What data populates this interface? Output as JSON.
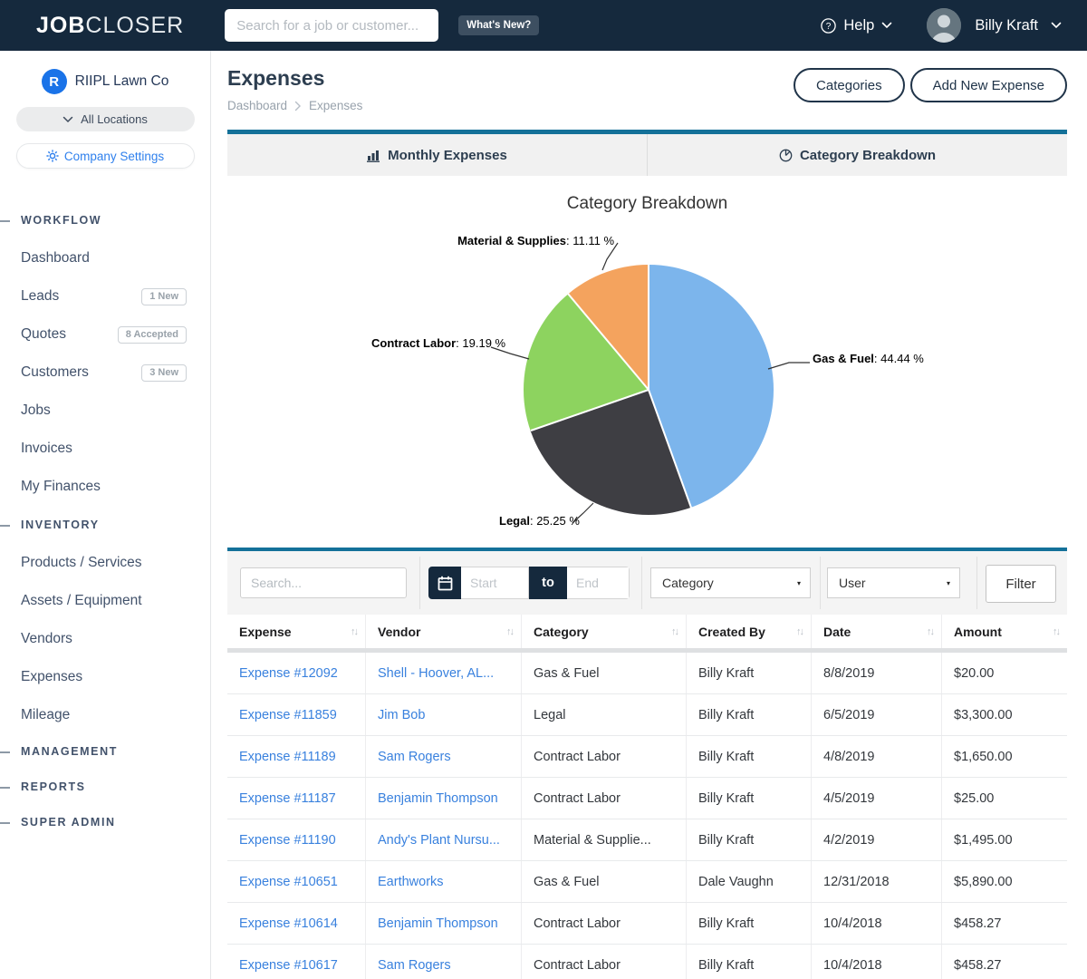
{
  "navbar": {
    "logo_bold": "JOB",
    "logo_light": "CLOSER",
    "search_placeholder": "Search for a job or customer...",
    "whats_new_label": "What's New?",
    "help_label": "Help",
    "user_name": "Billy Kraft"
  },
  "sidebar": {
    "company": {
      "initial": "R",
      "name": "RIIPL Lawn Co",
      "locations_label": "All Locations",
      "settings_label": "Company Settings"
    },
    "sections": [
      {
        "title": "WORKFLOW",
        "items": [
          {
            "label": "Dashboard"
          },
          {
            "label": "Leads",
            "badge": "1 New"
          },
          {
            "label": "Quotes",
            "badge": "8 Accepted"
          },
          {
            "label": "Customers",
            "badge": "3 New"
          },
          {
            "label": "Jobs"
          },
          {
            "label": "Invoices"
          },
          {
            "label": "My Finances"
          }
        ]
      },
      {
        "title": "INVENTORY",
        "items": [
          {
            "label": "Products / Services"
          },
          {
            "label": "Assets / Equipment"
          },
          {
            "label": "Vendors"
          },
          {
            "label": "Expenses"
          },
          {
            "label": "Mileage"
          }
        ]
      },
      {
        "title": "MANAGEMENT",
        "items": []
      },
      {
        "title": "REPORTS",
        "items": []
      },
      {
        "title": "SUPER ADMIN",
        "items": []
      }
    ]
  },
  "page": {
    "title": "Expenses",
    "breadcrumb": [
      "Dashboard",
      "Expenses"
    ],
    "categories_button": "Categories",
    "add_expense_button": "Add New Expense"
  },
  "tabs": [
    {
      "label": "Monthly Expenses"
    },
    {
      "label": "Category Breakdown"
    }
  ],
  "chart_data": {
    "type": "pie",
    "title": "Category Breakdown",
    "legend_position": "none (data labels with connector lines)",
    "start_angle_deg": 0,
    "direction": "clockwise",
    "slices": [
      {
        "label": "Gas & Fuel",
        "value": 44.44,
        "pct_text": ": 44.44 %",
        "color": "#7cb5ec"
      },
      {
        "label": "Legal",
        "value": 25.25,
        "pct_text": ": 25.25 %",
        "color": "#3e3e43"
      },
      {
        "label": "Contract Labor",
        "value": 19.19,
        "pct_text": ": 19.19 %",
        "color": "#8dd35f"
      },
      {
        "label": "Material & Supplies",
        "value": 11.11,
        "pct_text": ": 11.11 %",
        "color": "#f4a35e"
      }
    ]
  },
  "filters": {
    "search_placeholder": "Search...",
    "date_start_placeholder": "Start",
    "date_to_label": "to",
    "date_end_placeholder": "End",
    "category_value": "Category",
    "user_value": "User",
    "filter_button": "Filter"
  },
  "table": {
    "columns": [
      "Expense",
      "Vendor",
      "Category",
      "Created By",
      "Date",
      "Amount"
    ],
    "rows": [
      [
        "Expense #12092",
        "Shell - Hoover, AL...",
        "Gas & Fuel",
        "Billy Kraft",
        "8/8/2019",
        "$20.00"
      ],
      [
        "Expense #11859",
        "Jim Bob",
        "Legal",
        "Billy Kraft",
        "6/5/2019",
        "$3,300.00"
      ],
      [
        "Expense #11189",
        "Sam Rogers",
        "Contract Labor",
        "Billy Kraft",
        "4/8/2019",
        "$1,650.00"
      ],
      [
        "Expense #11187",
        "Benjamin Thompson",
        "Contract Labor",
        "Billy Kraft",
        "4/5/2019",
        "$25.00"
      ],
      [
        "Expense #11190",
        "Andy's Plant Nursu...",
        "Material & Supplie...",
        "Billy Kraft",
        "4/2/2019",
        "$1,495.00"
      ],
      [
        "Expense #10651",
        "Earthworks",
        "Gas & Fuel",
        "Dale Vaughn",
        "12/31/2018",
        "$5,890.00"
      ],
      [
        "Expense #10614",
        "Benjamin Thompson",
        "Contract Labor",
        "Billy Kraft",
        "10/4/2018",
        "$458.27"
      ],
      [
        "Expense #10617",
        "Sam Rogers",
        "Contract Labor",
        "Billy Kraft",
        "10/4/2018",
        "$458.27"
      ]
    ]
  },
  "colors": {
    "navbar_bg": "#15293d",
    "accent_teal": "#147199",
    "link_blue": "#3981de",
    "brand_blue": "#1a73e8",
    "settings_blue": "#2f80ed",
    "filter_bg": "#f4f4f4",
    "tab_bg": "#f1f1f1"
  }
}
